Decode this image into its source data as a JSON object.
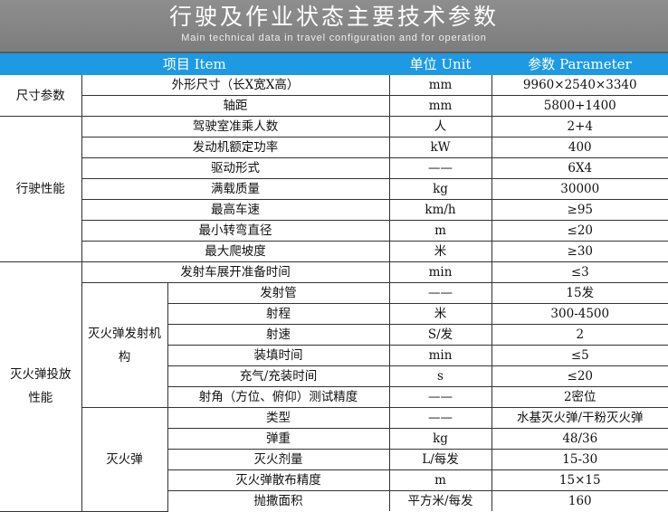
{
  "header": {
    "title": "行驶及作业状态主要技术参数",
    "subtitle": "Main technical data in travel configuration and for operation"
  },
  "columns": {
    "item": "项目 Item",
    "unit": "单位 Unit",
    "param": "参数 Parameter"
  },
  "colors": {
    "header_blue": "#1e9ae4",
    "title_gray": "#858585"
  },
  "groups": {
    "size": {
      "label": "尺寸参数",
      "rows": [
        {
          "item": "外形尺寸（长X宽X高）",
          "unit": "mm",
          "value": "9960×2540×3340"
        },
        {
          "item": "轴距",
          "unit": "mm",
          "value": "5800+1400"
        }
      ]
    },
    "driving": {
      "label": "行驶性能",
      "rows": [
        {
          "item": "驾驶室准乘人数",
          "unit": "人",
          "value": "2+4"
        },
        {
          "item": "发动机额定功率",
          "unit": "kW",
          "value": "400"
        },
        {
          "item": "驱动形式",
          "unit": "——",
          "value": "6X4"
        },
        {
          "item": "满载质量",
          "unit": "kg",
          "value": "30000"
        },
        {
          "item": "最高车速",
          "unit": "km/h",
          "value": "≥95"
        },
        {
          "item": "最小转弯直径",
          "unit": "m",
          "value": "≤20"
        },
        {
          "item": "最大爬坡度",
          "unit": "米",
          "value": "≥30"
        }
      ]
    },
    "launch": {
      "label": "灭火弹投放性能",
      "first": {
        "item": "发射车展开准备时间",
        "unit": "min",
        "value": "≤3"
      },
      "mechanism": {
        "label": "灭火弹发射机构",
        "rows": [
          {
            "item": "发射管",
            "unit": "——",
            "value": "15发"
          },
          {
            "item": "射程",
            "unit": "米",
            "value": "300-4500"
          },
          {
            "item": "射速",
            "unit": "S/发",
            "value": "2"
          },
          {
            "item": "装填时间",
            "unit": "min",
            "value": "≤5"
          },
          {
            "item": "充气/充装时间",
            "unit": "s",
            "value": "≤20"
          },
          {
            "item": "射角（方位、俯仰）测试精度",
            "unit": "——",
            "value": "2密位"
          }
        ]
      },
      "bomb": {
        "label": "灭火弹",
        "rows": [
          {
            "item": "类型",
            "unit": "——",
            "value": "水基灭火弹/干粉灭火弹"
          },
          {
            "item": "弹重",
            "unit": "kg",
            "value": "48/36"
          },
          {
            "item": "灭火剂量",
            "unit": "L/每发",
            "value": "15-30"
          },
          {
            "item": "灭火弹散布精度",
            "unit": "m",
            "value": "15×15"
          },
          {
            "item": "抛撒面积",
            "unit": "平方米/每发",
            "value": "160"
          }
        ]
      }
    }
  }
}
